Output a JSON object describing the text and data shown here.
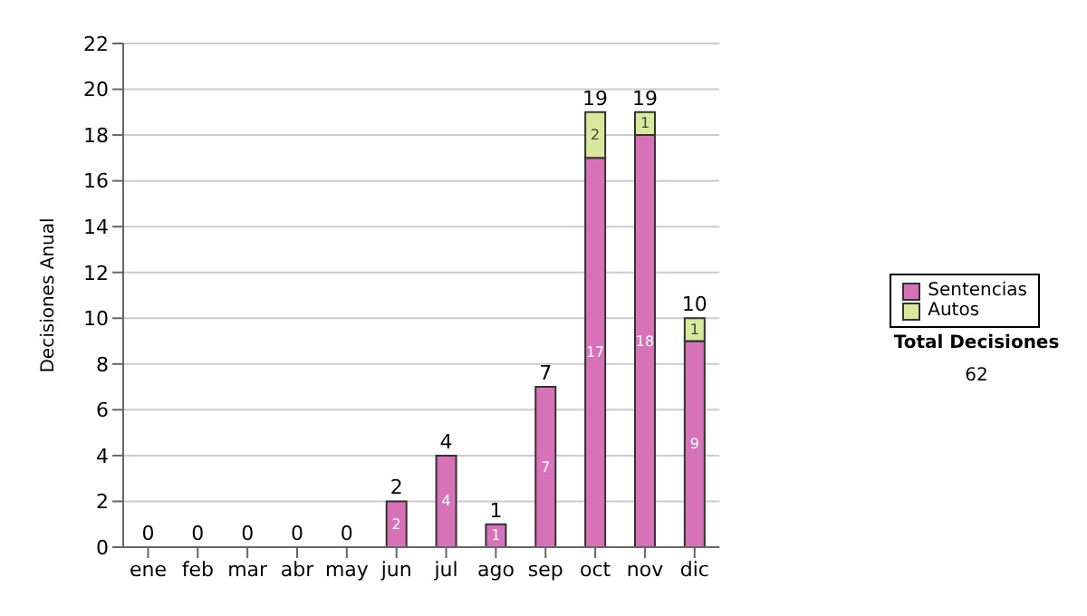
{
  "chart_data": {
    "type": "bar",
    "ylabel": "Decisiones Anual",
    "categories": [
      "ene",
      "feb",
      "mar",
      "abr",
      "may",
      "jun",
      "jul",
      "ago",
      "sep",
      "oct",
      "nov",
      "dic"
    ],
    "series": [
      {
        "name": "Sentencias",
        "color": "#d771b8",
        "values": [
          0,
          0,
          0,
          0,
          0,
          2,
          4,
          1,
          7,
          17,
          18,
          9
        ],
        "value_labels": [
          null,
          null,
          null,
          null,
          null,
          "2",
          "4",
          "1",
          "7",
          "17",
          "18",
          "9"
        ]
      },
      {
        "name": "Autos",
        "color": "#d9e89a",
        "values": [
          0,
          0,
          0,
          0,
          0,
          0,
          0,
          0,
          0,
          2,
          1,
          1
        ],
        "value_labels": [
          null,
          null,
          null,
          null,
          null,
          null,
          null,
          null,
          null,
          "2",
          "1",
          "1"
        ]
      }
    ],
    "stacked": true,
    "totals": [
      "0",
      "0",
      "0",
      "0",
      "0",
      "2",
      "4",
      "1",
      "7",
      "19",
      "19",
      "10"
    ],
    "ylim": [
      0,
      22
    ],
    "yticks": [
      0,
      2,
      4,
      6,
      8,
      10,
      12,
      14,
      16,
      18,
      20,
      22
    ],
    "grid": "y",
    "legend": "right",
    "annotations": [
      "Total Decisiones",
      "62"
    ]
  }
}
